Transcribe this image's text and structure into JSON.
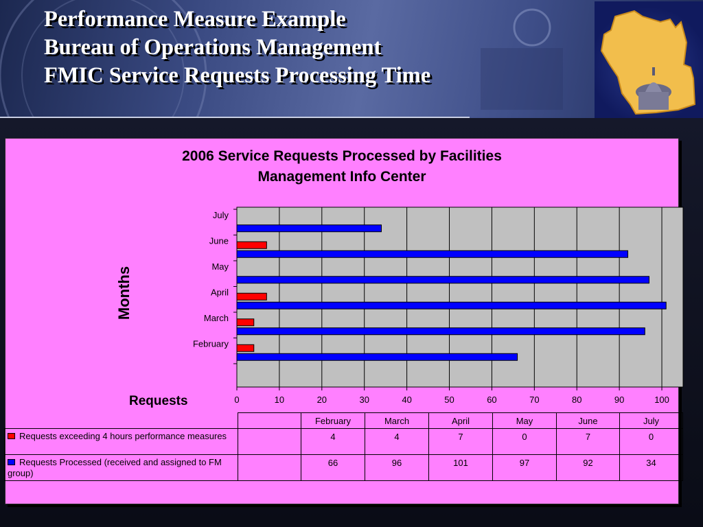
{
  "slide": {
    "title_lines": [
      "Performance Measure Example",
      "Bureau of Operations Management",
      "FMIC Service Requests Processing Time"
    ]
  },
  "colors": {
    "exceeding": "#ff0000",
    "processed": "#0000ff",
    "plot_bg": "#c0c0c0",
    "panel_bg": "#ff80ff"
  },
  "chart_data": {
    "type": "bar",
    "orientation": "horizontal",
    "title_lines": [
      "2006 Service Requests Processed by Facilities",
      "Management Info Center"
    ],
    "xlabel": "Requests",
    "ylabel": "Months",
    "categories": [
      "February",
      "March",
      "April",
      "May",
      "June",
      "July"
    ],
    "series": [
      {
        "name": "Requests exceeding 4 hours performance measures",
        "color": "#ff0000",
        "values": [
          4,
          4,
          7,
          0,
          7,
          0
        ]
      },
      {
        "name": "Requests Processed (received and assigned to FM group)",
        "color": "#0000ff",
        "values": [
          66,
          96,
          101,
          97,
          92,
          34
        ]
      }
    ],
    "xlim": [
      0,
      105
    ],
    "x_ticks": [
      0,
      10,
      20,
      30,
      40,
      50,
      60,
      70,
      80,
      90,
      100
    ],
    "grid": true,
    "legend_placement": "data table below chart"
  }
}
